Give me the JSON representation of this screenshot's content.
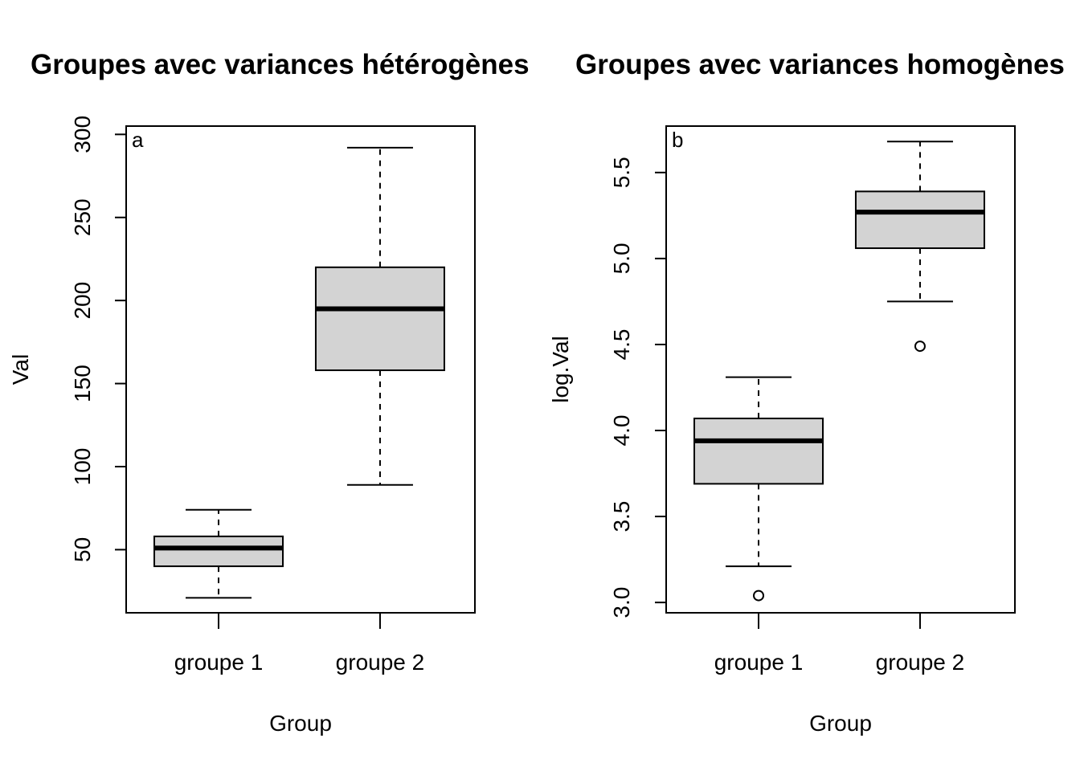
{
  "chart_data": [
    {
      "type": "box",
      "title": "Groupes avec variances hétérogènes",
      "panel_label": "a",
      "xlabel": "Group",
      "ylabel": "Val",
      "categories": [
        "groupe 1",
        "groupe 2"
      ],
      "yticks": [
        "50",
        "100",
        "150",
        "200",
        "250",
        "300"
      ],
      "ylim": [
        12,
        305
      ],
      "boxes": [
        {
          "min": 21,
          "q1": 40,
          "median": 51,
          "q3": 58,
          "max": 74,
          "outliers": []
        },
        {
          "min": 89,
          "q1": 158,
          "median": 195,
          "q3": 220,
          "max": 292,
          "outliers": []
        }
      ],
      "box_fill": "#d3d3d3"
    },
    {
      "type": "box",
      "title": "Groupes avec variances homogènes",
      "panel_label": "b",
      "xlabel": "Group",
      "ylabel": "log.Val",
      "categories": [
        "groupe 1",
        "groupe 2"
      ],
      "yticks": [
        "3.0",
        "3.5",
        "4.0",
        "4.5",
        "5.0",
        "5.5"
      ],
      "ylim": [
        2.94,
        5.77
      ],
      "boxes": [
        {
          "min": 3.21,
          "q1": 3.69,
          "median": 3.94,
          "q3": 4.07,
          "max": 4.31,
          "outliers": [
            3.04
          ]
        },
        {
          "min": 4.75,
          "q1": 5.06,
          "median": 5.27,
          "q3": 5.39,
          "max": 5.68,
          "outliers": [
            4.49
          ]
        }
      ],
      "box_fill": "#d3d3d3"
    }
  ]
}
